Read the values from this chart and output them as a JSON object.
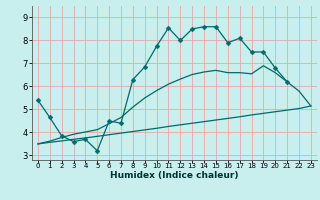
{
  "xlabel": "Humidex (Indice chaleur)",
  "bg_color": "#c8eeee",
  "grid_color": "#e8a8a8",
  "line_color": "#006b6b",
  "xlim": [
    -0.5,
    23.5
  ],
  "ylim": [
    2.8,
    9.5
  ],
  "xticks": [
    0,
    1,
    2,
    3,
    4,
    5,
    6,
    7,
    8,
    9,
    10,
    11,
    12,
    13,
    14,
    15,
    16,
    17,
    18,
    19,
    20,
    21,
    22,
    23
  ],
  "yticks": [
    3,
    4,
    5,
    6,
    7,
    8,
    9
  ],
  "c1x": [
    0,
    1,
    2,
    3,
    4,
    5,
    6,
    7,
    8,
    9,
    10,
    11,
    12,
    13,
    14,
    15,
    16,
    17,
    18,
    19,
    20,
    21
  ],
  "c1y": [
    5.4,
    4.65,
    3.85,
    3.6,
    3.7,
    3.2,
    4.5,
    4.4,
    6.3,
    6.85,
    7.75,
    8.55,
    8.0,
    8.5,
    8.6,
    8.6,
    7.9,
    8.1,
    7.5,
    7.5,
    6.8,
    6.2
  ],
  "c2x": [
    0,
    1,
    2,
    3,
    4,
    5,
    6,
    7,
    8,
    9,
    10,
    11,
    12,
    13,
    14,
    15,
    16,
    17,
    18,
    19,
    20,
    21,
    22,
    23
  ],
  "c2y": [
    3.5,
    3.57,
    3.63,
    3.7,
    3.76,
    3.83,
    3.9,
    3.97,
    4.04,
    4.11,
    4.18,
    4.26,
    4.33,
    4.4,
    4.47,
    4.54,
    4.61,
    4.68,
    4.76,
    4.83,
    4.9,
    4.97,
    5.04,
    5.15
  ],
  "c3x": [
    0,
    1,
    2,
    3,
    4,
    5,
    6,
    7,
    8,
    9,
    10,
    11,
    12,
    13,
    14,
    15,
    16,
    17,
    18,
    19,
    20,
    21,
    22,
    23
  ],
  "c3y": [
    3.5,
    3.62,
    3.78,
    3.92,
    4.02,
    4.12,
    4.38,
    4.65,
    5.1,
    5.5,
    5.82,
    6.1,
    6.32,
    6.52,
    6.63,
    6.7,
    6.6,
    6.6,
    6.55,
    6.9,
    6.6,
    6.2,
    5.8,
    5.15
  ]
}
